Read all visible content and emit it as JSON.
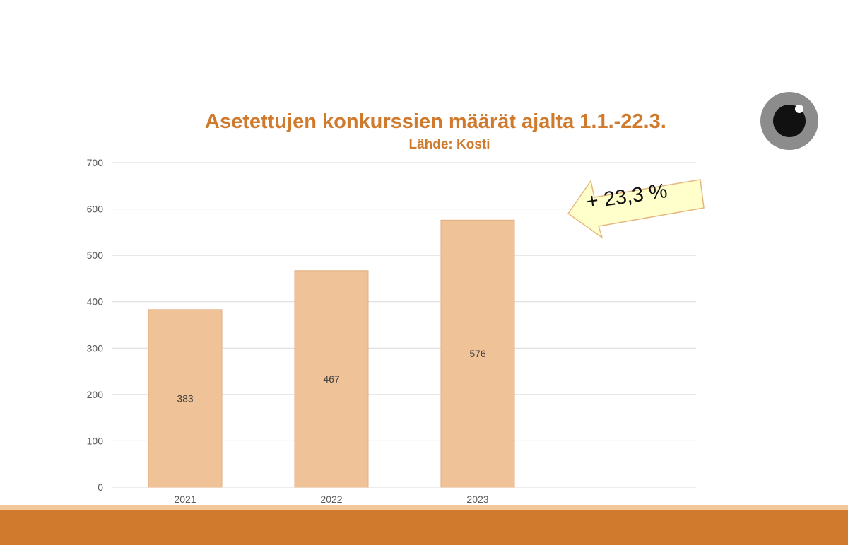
{
  "chart_data": {
    "type": "bar",
    "title": "Asetettujen konkurssien määrät ajalta 1.1.-22.3.",
    "subtitle": "Lähde: Kosti",
    "categories": [
      "2021",
      "2022",
      "2023"
    ],
    "values": [
      383,
      467,
      576
    ],
    "data_labels": [
      "383",
      "467",
      "576"
    ],
    "ylim": [
      0,
      700
    ],
    "yticks": [
      0,
      100,
      200,
      300,
      400,
      500,
      600,
      700
    ],
    "ytick_labels": [
      "0",
      "100",
      "200",
      "300",
      "400",
      "500",
      "600",
      "700"
    ],
    "grid": true,
    "xlabel": "",
    "ylabel": ""
  },
  "annotation": {
    "text": "+ 23,3 %"
  },
  "colors": {
    "title": "#D07A2E",
    "bar": "#F0C297",
    "bar_stroke": "#E2AE80",
    "grid": "#D9D9D9",
    "tick_text": "#595959",
    "data_label": "#404040",
    "footer_band": "#D07A2E",
    "footer_light": "#F2C79A",
    "callout_fill": "#FFFFCC",
    "callout_stroke": "#E5B77F",
    "logo_ring": "#8C8C8C",
    "logo_pupil": "#111111"
  },
  "icons": {
    "logo": "eye-icon",
    "callout": "left-arrow-icon"
  }
}
